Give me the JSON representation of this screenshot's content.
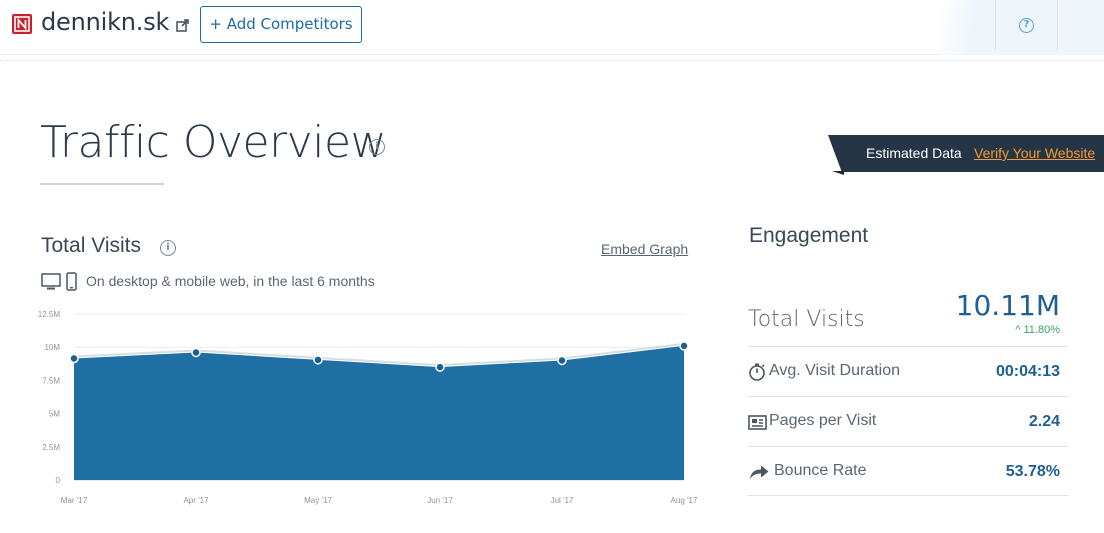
{
  "header": {
    "site_name": "dennikn.sk",
    "add_competitors_label": "+ Add Competitors",
    "help_label": "?"
  },
  "title": {
    "text": "Traffic Overview",
    "info_label": "i"
  },
  "estimated": {
    "label": "Estimated Data",
    "link": "Verify Your Website"
  },
  "total_visits": {
    "title": "Total Visits",
    "info_label": "i",
    "embed_label": "Embed Graph",
    "subtitle": "On desktop & mobile web, in the last 6 months"
  },
  "engagement": {
    "title": "Engagement",
    "total_visits_label": "Total Visits",
    "total_visits_value": "10.11M",
    "total_visits_change": "11.80%",
    "rows": [
      {
        "label": "Avg. Visit Duration",
        "value": "00:04:13",
        "icon": "stopwatch-icon"
      },
      {
        "label": "Pages per Visit",
        "value": "2.24",
        "icon": "pages-icon"
      },
      {
        "label": "Bounce Rate",
        "value": "53.78%",
        "icon": "bounce-arrow-icon"
      }
    ]
  },
  "colors": {
    "accent": "#1e6ba8",
    "area_fill": "#1e6fa3",
    "banner_bg": "#253546",
    "banner_link": "#f29b37",
    "positive_change": "#3aa65a"
  },
  "chart_data": {
    "type": "area",
    "categories": [
      "Mar '17",
      "Apr '17",
      "May '17",
      "Jun '17",
      "Jul '17",
      "Aug '17"
    ],
    "values": [
      9.15,
      9.6,
      9.05,
      8.5,
      9.0,
      10.1
    ],
    "ylim": [
      0,
      12.5
    ],
    "yticks": [
      0,
      2.5,
      5,
      7.5,
      10,
      12.5
    ],
    "ytick_labels": [
      "0",
      "2.5M",
      "5M",
      "7.5M",
      "10M",
      "12.5M"
    ],
    "grid": true
  }
}
